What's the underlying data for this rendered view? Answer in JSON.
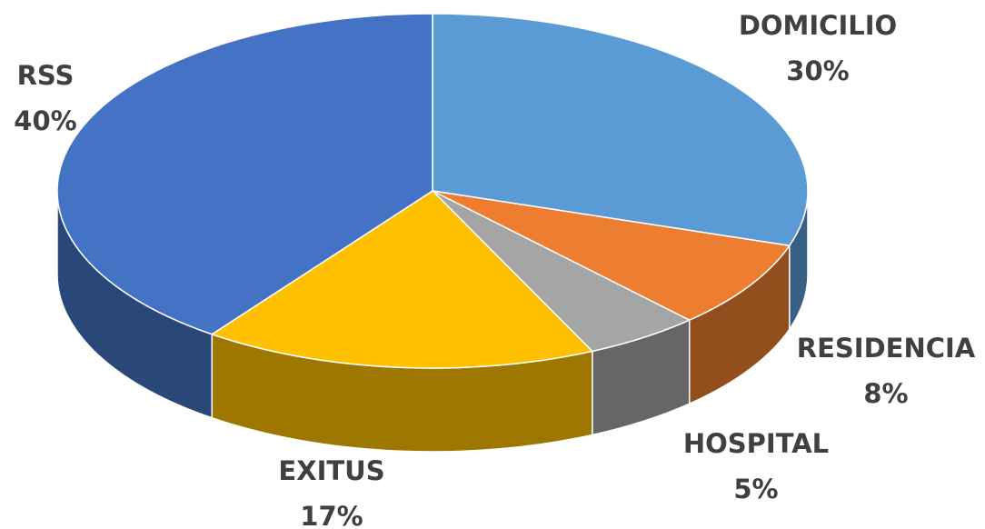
{
  "chart_data": {
    "type": "pie",
    "categories": [
      "DOMICILIO",
      "RESIDENCIA",
      "HOSPITAL",
      "EXITUS",
      "RSS"
    ],
    "values": [
      30,
      8,
      5,
      17,
      40
    ],
    "value_labels": [
      "30%",
      "8%",
      "5%",
      "17%",
      "40%"
    ],
    "colors": [
      "#5b9bd5",
      "#ed7d31",
      "#a5a5a5",
      "#ffc000",
      "#4472c4"
    ]
  }
}
